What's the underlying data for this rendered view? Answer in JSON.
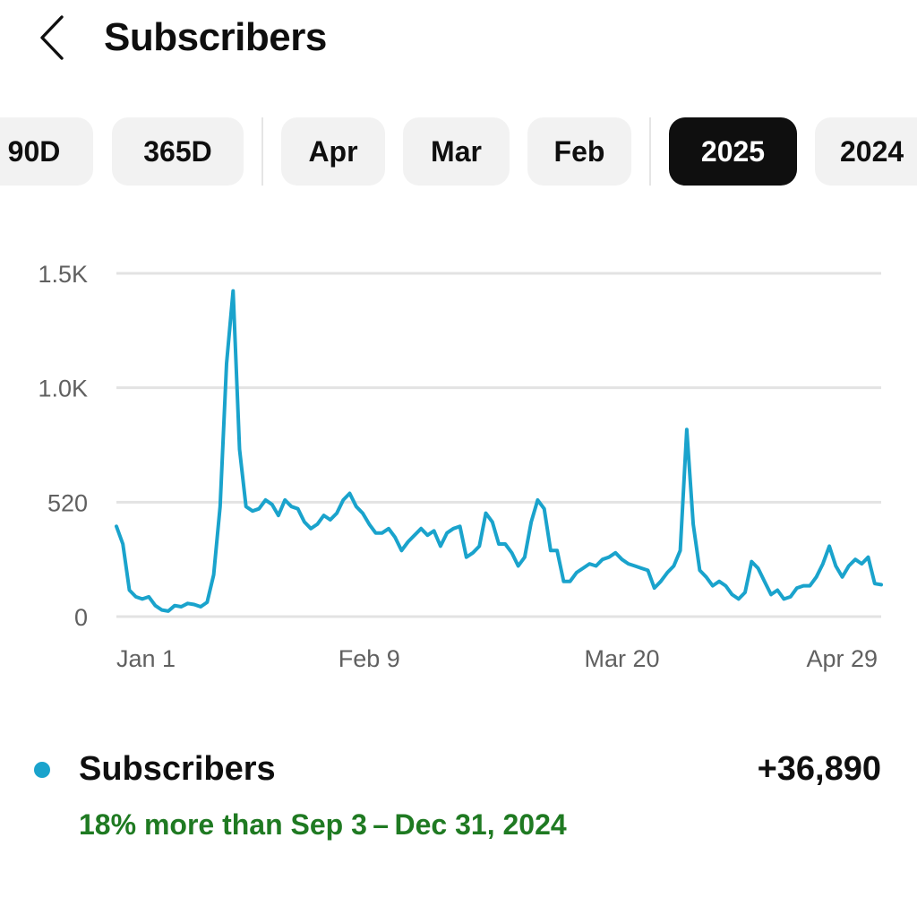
{
  "header": {
    "title": "Subscribers",
    "back_icon": "chevron-left-icon"
  },
  "period_chips": [
    {
      "label": "90D",
      "selected": false
    },
    {
      "label": "365D",
      "selected": false
    },
    {
      "label": "Apr",
      "selected": false
    },
    {
      "label": "Mar",
      "selected": false
    },
    {
      "label": "Feb",
      "selected": false
    },
    {
      "label": "2025",
      "selected": true
    },
    {
      "label": "2024",
      "selected": false
    }
  ],
  "colors": {
    "accent": "#1aa3cc",
    "positive": "#1f7a22",
    "selected_chip": "#0f0f0f",
    "chip": "#f2f2f2",
    "grid": "#e3e3e3",
    "axis_text": "#606060"
  },
  "chart_data": {
    "type": "line",
    "title": "",
    "xlabel": "",
    "ylabel": "",
    "x_tick_labels": [
      "Jan 1",
      "Feb 9",
      "Mar 20",
      "Apr 29"
    ],
    "x_tick_indices": [
      0,
      39,
      78,
      118
    ],
    "y_tick_labels": [
      "0",
      "520",
      "1.0K",
      "1.5K"
    ],
    "y_tick_values": [
      0,
      520,
      1040,
      1560
    ],
    "ylim": [
      0,
      1560
    ],
    "grid": true,
    "series": [
      {
        "name": "Subscribers",
        "color": "#1aa3cc",
        "values": [
          410,
          330,
          120,
          90,
          80,
          90,
          50,
          30,
          25,
          50,
          45,
          60,
          55,
          45,
          65,
          190,
          500,
          1150,
          1480,
          760,
          500,
          480,
          490,
          530,
          510,
          460,
          530,
          500,
          490,
          430,
          400,
          420,
          460,
          440,
          470,
          530,
          560,
          500,
          470,
          420,
          380,
          380,
          400,
          360,
          300,
          340,
          370,
          400,
          370,
          390,
          320,
          380,
          400,
          410,
          270,
          290,
          320,
          470,
          430,
          330,
          330,
          290,
          230,
          270,
          430,
          530,
          490,
          300,
          300,
          160,
          160,
          200,
          220,
          240,
          230,
          260,
          270,
          290,
          260,
          240,
          230,
          220,
          210,
          130,
          160,
          200,
          230,
          300,
          850,
          420,
          210,
          180,
          140,
          160,
          140,
          100,
          80,
          110,
          250,
          220,
          160,
          100,
          120,
          80,
          90,
          130,
          140,
          140,
          180,
          240,
          320,
          230,
          180,
          230,
          260,
          240,
          270,
          150,
          145
        ]
      }
    ]
  },
  "legend": {
    "series_label": "Subscribers",
    "total": "+36,890",
    "comparison": "18% more than Sep 3 – Dec 31, 2024"
  }
}
